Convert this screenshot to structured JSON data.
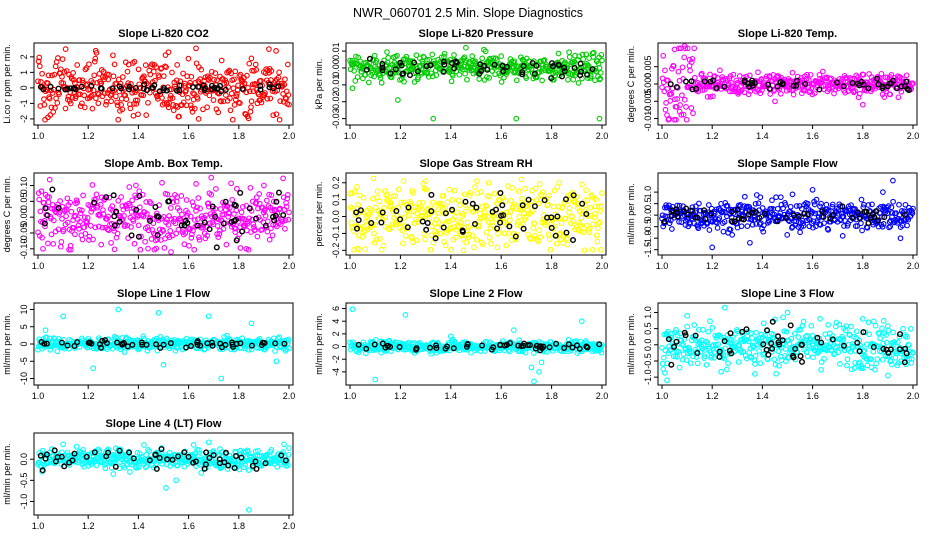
{
  "figure_title": "NWR_060701  2.5 Min. Slope Diagnostics",
  "colors": {
    "overlay": "#000000",
    "red": "#ff0000",
    "green": "#00cc00",
    "magenta": "#ff00ff",
    "yellow": "#ffff00",
    "blue": "#0000ff",
    "cyan": "#00ffff"
  },
  "chart_data": [
    {
      "type": "scatter",
      "title": "Slope Li-820 CO2",
      "ylabel": "Li.co r ppm per min.",
      "color": "#ff0000",
      "xlim": [
        1.0,
        2.0
      ],
      "ylim": [
        -2.2,
        2.7
      ],
      "xticks": [
        1.0,
        1.2,
        1.4,
        1.6,
        1.8,
        2.0
      ],
      "yticks": [
        -2,
        -1,
        0,
        1,
        2
      ],
      "spread": 0.9,
      "overlay_spread": 0.12,
      "outliers": [
        [
          1.11,
          2.5
        ],
        [
          1.23,
          2.4
        ],
        [
          1.38,
          -1.8
        ],
        [
          1.52,
          2.3
        ],
        [
          1.64,
          -2.0
        ],
        [
          1.85,
          1.9
        ],
        [
          1.92,
          2.5
        ],
        [
          1.95,
          -1.7
        ],
        [
          1.04,
          -1.9
        ]
      ]
    },
    {
      "type": "scatter",
      "title": "Slope Li-820 Pressure",
      "ylabel": "kPa per min.",
      "color": "#00cc00",
      "xlim": [
        1.0,
        2.0
      ],
      "ylim": [
        -0.032,
        0.013
      ],
      "xticks": [
        1.0,
        1.2,
        1.4,
        1.6,
        1.8,
        2.0
      ],
      "yticks": [
        -0.03,
        -0.02,
        -0.01,
        0.0,
        0.01
      ],
      "spread": 0.004,
      "overlay_spread": 0.003,
      "outliers": [
        [
          1.01,
          -0.012
        ],
        [
          1.05,
          0.0
        ],
        [
          1.33,
          -0.03
        ],
        [
          1.46,
          0.012
        ],
        [
          1.66,
          -0.03
        ],
        [
          1.99,
          -0.03
        ],
        [
          1.99,
          0.0
        ],
        [
          1.19,
          -0.019
        ],
        [
          1.6,
          0.007
        ]
      ]
    },
    {
      "type": "scatter",
      "title": "Slope Li-820 Temp.",
      "ylabel": "degrees C per min.",
      "color": "#ff00ff",
      "xlim": [
        1.0,
        2.0
      ],
      "ylim": [
        -0.011,
        0.011
      ],
      "xticks": [
        1.0,
        1.2,
        1.4,
        1.6,
        1.8,
        2.0
      ],
      "yticks": [
        -0.01,
        -0.005,
        0.0,
        0.005
      ],
      "spread": 0.0015,
      "overlay_spread": 0.0008,
      "early_spread": 0.006,
      "outliers": [
        [
          1.05,
          0.01
        ],
        [
          1.09,
          0.011
        ],
        [
          1.02,
          -0.009
        ],
        [
          1.07,
          -0.008
        ],
        [
          1.11,
          0.007
        ],
        [
          1.45,
          -0.005
        ],
        [
          1.8,
          -0.006
        ],
        [
          1.91,
          0.002
        ]
      ]
    },
    {
      "type": "scatter",
      "title": "Slope Amb. Box Temp.",
      "ylabel": "degrees C per min.",
      "color": "#ff00ff",
      "xlim": [
        1.0,
        2.0
      ],
      "ylim": [
        -0.11,
        0.13
      ],
      "xticks": [
        1.0,
        1.2,
        1.4,
        1.6,
        1.8,
        2.0
      ],
      "yticks": [
        -0.1,
        -0.05,
        0.0,
        0.05,
        0.1
      ],
      "spread": 0.045,
      "overlay_spread": 0.04,
      "outliers": [
        [
          1.69,
          0.125
        ],
        [
          1.02,
          -0.1
        ],
        [
          1.13,
          -0.09
        ],
        [
          1.39,
          0.1
        ],
        [
          1.53,
          -0.11
        ],
        [
          1.63,
          0.105
        ],
        [
          1.83,
          -0.1
        ],
        [
          1.9,
          0.1
        ]
      ]
    },
    {
      "type": "scatter",
      "title": "Slope Gas Stream RH",
      "ylabel": "percent per min.",
      "color": "#ffff00",
      "xlim": [
        1.0,
        2.0
      ],
      "ylim": [
        -0.21,
        0.24
      ],
      "xticks": [
        1.0,
        1.2,
        1.4,
        1.6,
        1.8,
        2.0
      ],
      "yticks": [
        -0.2,
        -0.1,
        0.0,
        0.1,
        0.2
      ],
      "spread": 0.09,
      "overlay_spread": 0.08,
      "outliers": [
        [
          1.3,
          0.21
        ],
        [
          1.68,
          0.22
        ],
        [
          1.93,
          -0.2
        ],
        [
          1.03,
          -0.19
        ],
        [
          1.45,
          -0.2
        ],
        [
          1.83,
          0.2
        ],
        [
          1.55,
          0.2
        ]
      ]
    },
    {
      "type": "scatter",
      "title": "Slope Sample Flow",
      "ylabel": "ml/min per min.",
      "color": "#0000ff",
      "xlim": [
        1.0,
        2.0
      ],
      "ylim": [
        -1.6,
        1.7
      ],
      "xticks": [
        1.0,
        1.2,
        1.4,
        1.6,
        1.8,
        2.0
      ],
      "yticks": [
        -1.5,
        -1.0,
        -0.5,
        0.0,
        0.5,
        1.0
      ],
      "spread": 0.32,
      "overlay_spread": 0.18,
      "outliers": [
        [
          1.92,
          1.5
        ],
        [
          1.88,
          1.0
        ],
        [
          1.35,
          -1.2
        ],
        [
          1.2,
          -1.4
        ],
        [
          1.52,
          0.9
        ],
        [
          1.72,
          -0.9
        ],
        [
          1.95,
          -1.0
        ],
        [
          1.6,
          1.1
        ],
        [
          1.33,
          0.8
        ]
      ]
    },
    {
      "type": "scatter",
      "title": "Slope Line 1 Flow",
      "ylabel": "ml/min per min.",
      "color": "#00ffff",
      "xlim": [
        1.0,
        2.0
      ],
      "ylim": [
        -11,
        11
      ],
      "xticks": [
        1.0,
        1.2,
        1.4,
        1.6,
        1.8,
        2.0
      ],
      "yticks": [
        -10,
        -5,
        0,
        5,
        10
      ],
      "spread": 0.9,
      "overlay_spread": 0.5,
      "outliers": [
        [
          1.32,
          10
        ],
        [
          1.22,
          -7
        ],
        [
          1.03,
          4
        ],
        [
          1.48,
          9
        ],
        [
          1.68,
          8
        ],
        [
          1.73,
          -10
        ],
        [
          1.95,
          -5
        ],
        [
          1.1,
          8
        ],
        [
          1.5,
          -6
        ],
        [
          1.85,
          6
        ]
      ]
    },
    {
      "type": "scatter",
      "title": "Slope Line 2 Flow",
      "ylabel": "ml/min per min.",
      "color": "#00ffff",
      "xlim": [
        1.0,
        2.0
      ],
      "ylim": [
        -5.6,
        6.4
      ],
      "xticks": [
        1.0,
        1.2,
        1.4,
        1.6,
        1.8,
        2.0
      ],
      "yticks": [
        -4,
        -2,
        0,
        2,
        4,
        6
      ],
      "spread": 0.45,
      "overlay_spread": 0.3,
      "outliers": [
        [
          1.01,
          5.9
        ],
        [
          1.22,
          5.0
        ],
        [
          1.1,
          -5.2
        ],
        [
          1.73,
          -5.5
        ],
        [
          1.75,
          -4.0
        ],
        [
          1.72,
          -3.3
        ],
        [
          1.76,
          -2.5
        ],
        [
          1.92,
          4.0
        ],
        [
          1.65,
          2.6
        ],
        [
          1.4,
          1.6
        ]
      ]
    },
    {
      "type": "scatter",
      "title": "Slope Line 3 Flow",
      "ylabel": "ml/min per min.",
      "color": "#00ffff",
      "xlim": [
        1.0,
        2.0
      ],
      "ylim": [
        -1.15,
        1.2
      ],
      "xticks": [
        1.0,
        1.2,
        1.4,
        1.6,
        1.8,
        2.0
      ],
      "yticks": [
        -1.0,
        -0.5,
        0.0,
        0.5,
        1.0
      ],
      "spread": 0.35,
      "overlay_spread": 0.3,
      "outliers": [
        [
          1.25,
          1.15
        ],
        [
          1.1,
          0.9
        ],
        [
          1.02,
          -1.1
        ],
        [
          1.5,
          1.0
        ],
        [
          1.37,
          -0.9
        ],
        [
          1.63,
          0.8
        ],
        [
          1.9,
          -0.95
        ],
        [
          1.8,
          0.8
        ]
      ]
    },
    {
      "type": "scatter",
      "title": "Slope Line 4 (LT) Flow",
      "ylabel": "ml/min per min.",
      "color": "#00ffff",
      "xlim": [
        1.0,
        2.0
      ],
      "ylim": [
        -1.25,
        0.55
      ],
      "xticks": [
        1.0,
        1.2,
        1.4,
        1.6,
        1.8,
        2.0
      ],
      "yticks": [
        -1.0,
        -0.5,
        0.0
      ],
      "spread": 0.12,
      "overlay_spread": 0.14,
      "outliers": [
        [
          1.84,
          -1.2
        ],
        [
          1.51,
          -0.68
        ],
        [
          1.55,
          -0.5
        ],
        [
          1.1,
          0.35
        ],
        [
          1.68,
          0.4
        ],
        [
          1.98,
          0.35
        ],
        [
          1.3,
          -0.35
        ]
      ]
    }
  ]
}
